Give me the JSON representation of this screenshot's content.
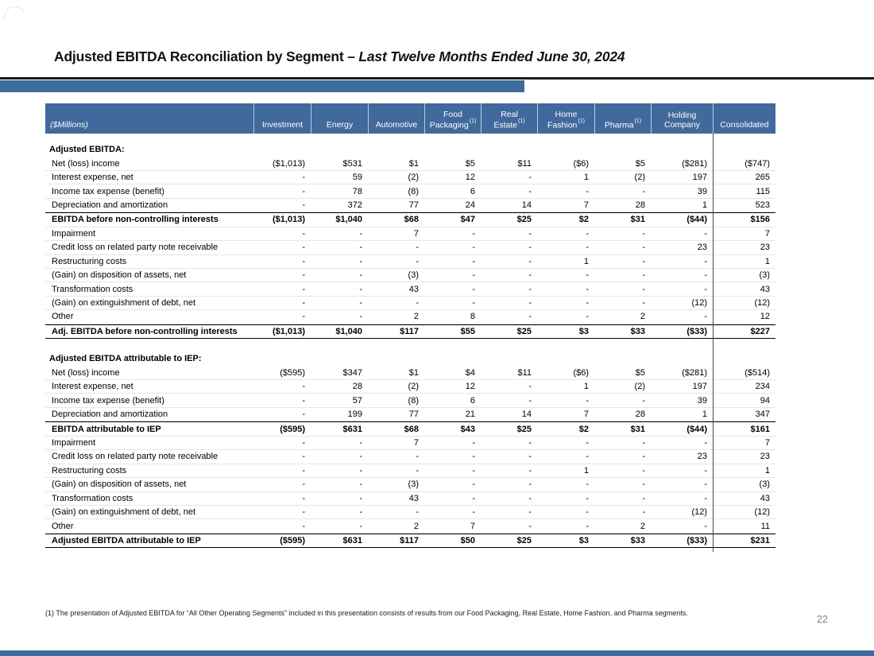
{
  "slide": {
    "title_main": "Adjusted EBITDA Reconciliation by Segment – ",
    "title_italic": "Last Twelve Months Ended June 30, 2024",
    "footnote": "(1) The presentation of Adjusted EBITDA for “All Other Operating Segments” included in this presentation consists of results from our Food Packaging, Real Estate, Home Fashion, and Pharma segments.",
    "page_number": "22",
    "accent_color": "#3E6B9E",
    "header_color": "#41699C"
  },
  "table": {
    "unit_label": "($Millions)",
    "columns": [
      {
        "lines": [
          "Investment"
        ],
        "sup": ""
      },
      {
        "lines": [
          "Energy"
        ],
        "sup": ""
      },
      {
        "lines": [
          "Automotive"
        ],
        "sup": ""
      },
      {
        "lines": [
          "Food",
          "Packaging"
        ],
        "sup": "(1)"
      },
      {
        "lines": [
          "Real",
          "Estate"
        ],
        "sup": "(1)"
      },
      {
        "lines": [
          "Home",
          "Fashion"
        ],
        "sup": "(1)"
      },
      {
        "lines": [
          "Pharma"
        ],
        "sup": "(1)"
      },
      {
        "lines": [
          "Holding",
          "Company"
        ],
        "sup": ""
      },
      {
        "lines": [
          "Consolidated"
        ],
        "sup": ""
      }
    ],
    "sections": [
      {
        "heading": "Adjusted EBITDA:",
        "rows": [
          {
            "label": "Net (loss) income",
            "style": "normal",
            "values": [
              "($1,013)",
              "$531",
              "$1",
              "$5",
              "$11",
              "($6)",
              "$5",
              "($281)",
              "($747)"
            ]
          },
          {
            "label": "Interest expense, net",
            "style": "normal",
            "values": [
              "-",
              "59",
              "(2)",
              "12",
              "-",
              "1",
              "(2)",
              "197",
              "265"
            ]
          },
          {
            "label": "Income tax expense (benefit)",
            "style": "normal",
            "values": [
              "-",
              "78",
              "(8)",
              "6",
              "-",
              "-",
              "-",
              "39",
              "115"
            ]
          },
          {
            "label": "Depreciation and amortization",
            "style": "normal",
            "values": [
              "-",
              "372",
              "77",
              "24",
              "14",
              "7",
              "28",
              "1",
              "523"
            ]
          },
          {
            "label": "EBITDA before non-controlling interests",
            "style": "subtotal",
            "values": [
              "($1,013)",
              "$1,040",
              "$68",
              "$47",
              "$25",
              "$2",
              "$31",
              "($44)",
              "$156"
            ]
          },
          {
            "label": "Impairment",
            "style": "normal",
            "values": [
              "-",
              "-",
              "7",
              "-",
              "-",
              "-",
              "-",
              "-",
              "7"
            ]
          },
          {
            "label": "Credit loss on related party note receivable",
            "style": "normal",
            "values": [
              "-",
              "-",
              "-",
              "-",
              "-",
              "-",
              "-",
              "23",
              "23"
            ]
          },
          {
            "label": "Restructuring costs",
            "style": "normal",
            "values": [
              "-",
              "-",
              "-",
              "-",
              "-",
              "1",
              "-",
              "-",
              "1"
            ]
          },
          {
            "label": "(Gain) on disposition of assets, net",
            "style": "normal",
            "values": [
              "-",
              "-",
              "(3)",
              "-",
              "-",
              "-",
              "-",
              "-",
              "(3)"
            ]
          },
          {
            "label": "Transformation costs",
            "style": "normal",
            "values": [
              "-",
              "-",
              "43",
              "-",
              "-",
              "-",
              "-",
              "-",
              "43"
            ]
          },
          {
            "label": "(Gain) on extinguishment of debt, net",
            "style": "normal",
            "values": [
              "-",
              "-",
              "-",
              "-",
              "-",
              "-",
              "-",
              "(12)",
              "(12)"
            ]
          },
          {
            "label": "Other",
            "style": "normal",
            "values": [
              "-",
              "-",
              "2",
              "8",
              "-",
              "-",
              "2",
              "-",
              "12"
            ]
          },
          {
            "label": "Adj. EBITDA before non-controlling interests",
            "style": "total",
            "values": [
              "($1,013)",
              "$1,040",
              "$117",
              "$55",
              "$25",
              "$3",
              "$33",
              "($33)",
              "$227"
            ]
          }
        ]
      },
      {
        "heading": "Adjusted EBITDA attributable to IEP:",
        "rows": [
          {
            "label": "Net (loss) income",
            "style": "normal",
            "values": [
              "($595)",
              "$347",
              "$1",
              "$4",
              "$11",
              "($6)",
              "$5",
              "($281)",
              "($514)"
            ]
          },
          {
            "label": "Interest expense, net",
            "style": "normal",
            "values": [
              "-",
              "28",
              "(2)",
              "12",
              "-",
              "1",
              "(2)",
              "197",
              "234"
            ]
          },
          {
            "label": "Income tax expense (benefit)",
            "style": "normal",
            "values": [
              "-",
              "57",
              "(8)",
              "6",
              "-",
              "-",
              "-",
              "39",
              "94"
            ]
          },
          {
            "label": "Depreciation and amortization",
            "style": "normal",
            "values": [
              "-",
              "199",
              "77",
              "21",
              "14",
              "7",
              "28",
              "1",
              "347"
            ]
          },
          {
            "label": "EBITDA attributable to IEP",
            "style": "subtotal",
            "values": [
              "($595)",
              "$631",
              "$68",
              "$43",
              "$25",
              "$2",
              "$31",
              "($44)",
              "$161"
            ]
          },
          {
            "label": "Impairment",
            "style": "normal",
            "values": [
              "-",
              "-",
              "7",
              "-",
              "-",
              "-",
              "-",
              "-",
              "7"
            ]
          },
          {
            "label": "Credit loss on related party note receivable",
            "style": "normal",
            "values": [
              "-",
              "-",
              "-",
              "-",
              "-",
              "-",
              "-",
              "23",
              "23"
            ]
          },
          {
            "label": "Restructuring costs",
            "style": "normal",
            "values": [
              "-",
              "-",
              "-",
              "-",
              "-",
              "1",
              "-",
              "-",
              "1"
            ]
          },
          {
            "label": "(Gain) on disposition of assets, net",
            "style": "normal",
            "values": [
              "-",
              "-",
              "(3)",
              "-",
              "-",
              "-",
              "-",
              "-",
              "(3)"
            ]
          },
          {
            "label": "Transformation costs",
            "style": "normal",
            "values": [
              "-",
              "-",
              "43",
              "-",
              "-",
              "-",
              "-",
              "-",
              "43"
            ]
          },
          {
            "label": "(Gain) on extinguishment of debt, net",
            "style": "normal",
            "values": [
              "-",
              "-",
              "-",
              "-",
              "-",
              "-",
              "-",
              "(12)",
              "(12)"
            ]
          },
          {
            "label": "Other",
            "style": "normal",
            "values": [
              "-",
              "-",
              "2",
              "7",
              "-",
              "-",
              "2",
              "-",
              "11"
            ]
          },
          {
            "label": "Adjusted EBITDA attributable to IEP",
            "style": "total",
            "values": [
              "($595)",
              "$631",
              "$117",
              "$50",
              "$25",
              "$3",
              "$33",
              "($33)",
              "$231"
            ]
          }
        ]
      }
    ]
  }
}
